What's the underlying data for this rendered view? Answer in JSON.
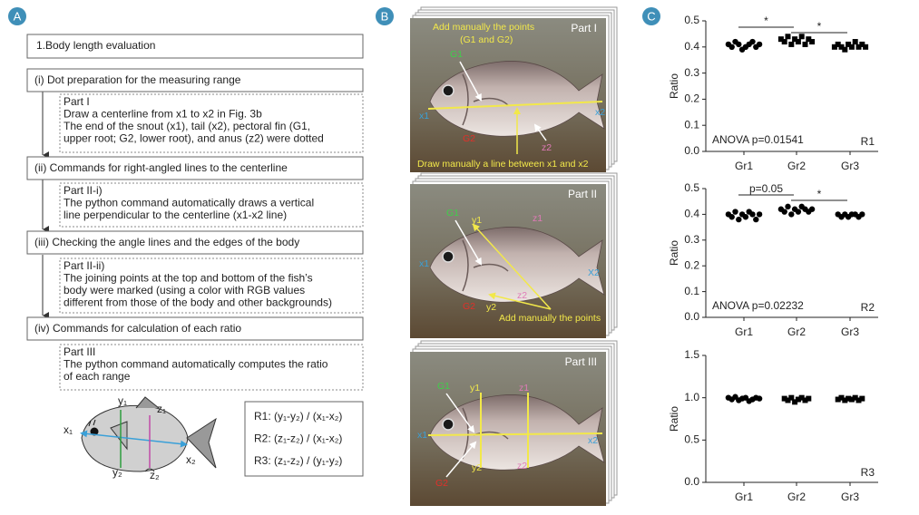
{
  "panel_a": {
    "label": "A",
    "title": "1.Body length evaluation",
    "steps": [
      {
        "heading": "(i) Dot preparation for the measuring range",
        "details": [
          "Part I",
          "Draw a centerline from x1 to x2 in Fig. 3b",
          "The end of the snout (x1), tail (x2), pectoral fin (G1,",
          "upper root; G2, lower root), and anus (z2) were dotted"
        ]
      },
      {
        "heading": "(ii) Commands for right-angled lines to the centerline",
        "details": [
          "Part II-i)",
          "The python command automatically draws a vertical",
          "line perpendicular to the centerline (x1-x2 line)"
        ]
      },
      {
        "heading": "(iii) Checking the angle lines and the edges of the body",
        "details": [
          "Part II-ii)",
          "The joining points at the top and bottom of the fish’s",
          "body were marked (using a color with RGB values",
          "different from those of the body and other backgrounds)"
        ]
      },
      {
        "heading": "(iv) Commands for calculation of each ratio",
        "details": [
          "Part III",
          "The python command automatically computes the ratio",
          "of each range"
        ]
      }
    ],
    "diagram_labels": [
      "x₁",
      "x₂",
      "y₁",
      "y₂",
      "z₁",
      "z₂"
    ],
    "formulas": [
      "R1: (y₁-y₂) / (x₁-x₂)",
      "R2: (z₁-z₂) / (x₁-x₂)",
      "R3: (z₁-z₂) / (y₁-y₂)"
    ]
  },
  "panel_b": {
    "label": "B",
    "parts": [
      {
        "title": "Part I",
        "labels": [
          "Add manually the points",
          "(G1 and G2)",
          "G1",
          "G2",
          "x1",
          "x2",
          "z2",
          "Draw manually a line between x1 and x2"
        ]
      },
      {
        "title": "Part II",
        "labels": [
          "G1",
          "y1",
          "z1",
          "x1",
          "X2",
          "z2",
          "G2",
          "y2",
          "Add manually the points"
        ]
      },
      {
        "title": "Part III",
        "labels": [
          "G1",
          "y1",
          "z1",
          "x1",
          "x2",
          "y2",
          "z2",
          "G2"
        ]
      }
    ]
  },
  "panel_c": {
    "label": "C"
  },
  "chart_data": [
    {
      "type": "strip",
      "ylabel": "Ratio",
      "categories": [
        "Gr1",
        "Gr2",
        "Gr3"
      ],
      "values": [
        [
          0.41,
          0.4,
          0.42,
          0.41,
          0.39,
          0.4,
          0.41,
          0.42,
          0.4,
          0.41
        ],
        [
          0.43,
          0.42,
          0.44,
          0.41,
          0.43,
          0.42,
          0.44,
          0.41,
          0.43,
          0.42
        ],
        [
          0.4,
          0.41,
          0.4,
          0.39,
          0.41,
          0.4,
          0.42,
          0.4,
          0.41,
          0.4
        ]
      ],
      "markers": [
        "circle",
        "square",
        "square"
      ],
      "color": "#000000",
      "ylim": [
        0,
        0.5
      ],
      "yticks": [
        {
          "value": 0,
          "label": "0.0"
        },
        0.1,
        0.2,
        0.3,
        0.4,
        0.5
      ],
      "comparisons": [
        {
          "pair": [
            0,
            1
          ],
          "label": "*"
        },
        {
          "pair": [
            1,
            2
          ],
          "label": "*"
        }
      ],
      "annotation": "ANOVA p=0.01541",
      "panel_label": "R1"
    },
    {
      "type": "strip",
      "ylabel": "Ratio",
      "categories": [
        "Gr1",
        "Gr2",
        "Gr3"
      ],
      "values": [
        [
          0.4,
          0.39,
          0.41,
          0.38,
          0.4,
          0.39,
          0.41,
          0.4,
          0.38,
          0.4
        ],
        [
          0.42,
          0.41,
          0.43,
          0.4,
          0.42,
          0.41,
          0.43,
          0.42,
          0.41,
          0.42
        ],
        [
          0.4,
          0.39,
          0.4,
          0.39,
          0.4,
          0.4,
          0.39,
          0.4
        ]
      ],
      "markers": [
        "circle",
        "circle",
        "circle"
      ],
      "color": "#000000",
      "ylim": [
        0,
        0.5
      ],
      "yticks": [
        {
          "value": 0,
          "label": "0.0"
        },
        0.1,
        0.2,
        0.3,
        0.4,
        0.5
      ],
      "comparisons": [
        {
          "pair": [
            0,
            1
          ],
          "label": "p=0.05"
        },
        {
          "pair": [
            1,
            2
          ],
          "label": "*"
        }
      ],
      "annotation": "ANOVA p=0.02232",
      "panel_label": "R2"
    },
    {
      "type": "strip",
      "ylabel": "Ratio",
      "categories": [
        "Gr1",
        "Gr2",
        "Gr3"
      ],
      "values": [
        [
          1.0,
          0.98,
          1.01,
          0.97,
          0.99,
          1.0,
          0.96,
          0.98,
          1.0,
          0.99
        ],
        [
          0.99,
          0.97,
          1.0,
          0.95,
          0.98,
          1.0,
          0.97,
          0.99
        ],
        [
          0.98,
          1.0,
          0.97,
          0.99,
          0.98,
          1.0,
          0.97,
          0.99
        ]
      ],
      "markers": [
        "circle",
        "square",
        "square"
      ],
      "color": "#000000",
      "ylim": [
        0,
        1.5
      ],
      "yticks": [
        {
          "value": 0,
          "label": "0.0"
        },
        0.5,
        {
          "value": 1,
          "label": "1.0"
        },
        1.5
      ],
      "panel_label": "R3"
    }
  ]
}
